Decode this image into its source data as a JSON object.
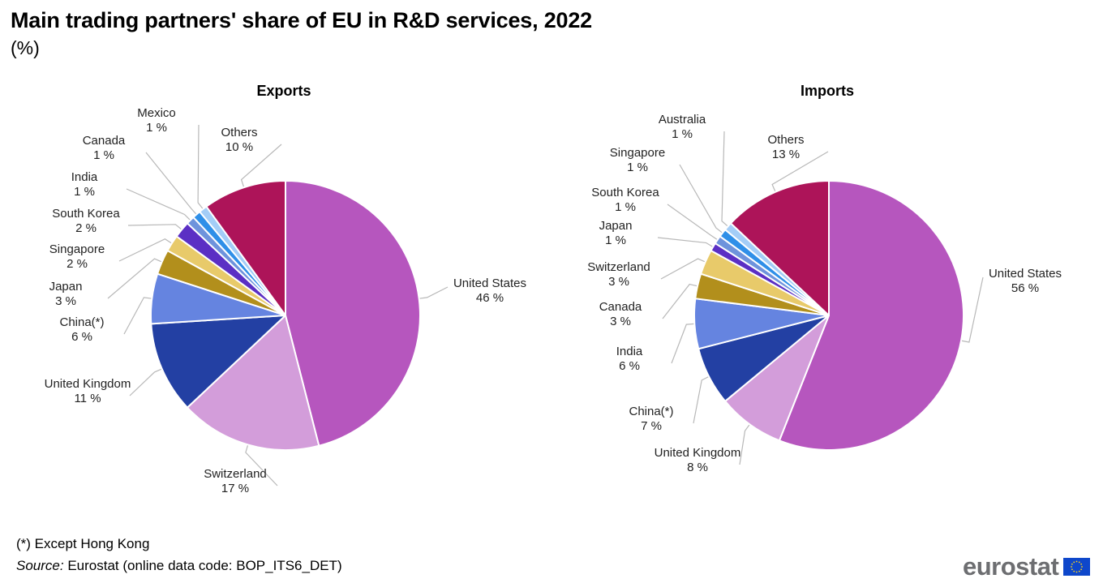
{
  "title": "Main trading partners' share of EU in R&D services, 2022",
  "subtitle": "(%)",
  "footnote": "(*) Except Hong  Kong",
  "source": {
    "label": "Source:",
    "text": " Eurostat (online data code: BOP_ITS6_DET)"
  },
  "logo": {
    "text": "eurostat",
    "flag_color": "#0e47cb",
    "star_color": "#ffd617"
  },
  "chart_data": [
    {
      "type": "pie",
      "title": "Exports",
      "unit": "%",
      "slices": [
        {
          "label": "United States",
          "value": 46,
          "value_label": "46 %",
          "color": "#b656be"
        },
        {
          "label": "Switzerland",
          "value": 17,
          "value_label": "17 %",
          "color": "#d39dda"
        },
        {
          "label": "United Kingdom",
          "value": 11,
          "value_label": "11 %",
          "color": "#2340a3"
        },
        {
          "label": "China(*)",
          "value": 6,
          "value_label": "6 %",
          "color": "#6584e0"
        },
        {
          "label": "Japan",
          "value": 3,
          "value_label": "3 %",
          "color": "#b28f1c"
        },
        {
          "label": "Singapore",
          "value": 2,
          "value_label": "2 %",
          "color": "#e8ca6a"
        },
        {
          "label": "South Korea",
          "value": 2,
          "value_label": "2 %",
          "color": "#5b2fc4"
        },
        {
          "label": "India",
          "value": 1,
          "value_label": "1 %",
          "color": "#6e93dc"
        },
        {
          "label": "Canada",
          "value": 1,
          "value_label": "1 %",
          "color": "#2f8fe8"
        },
        {
          "label": "Mexico",
          "value": 1,
          "value_label": "1 %",
          "color": "#a3cdf7"
        },
        {
          "label": "Others",
          "value": 10,
          "value_label": "10 %",
          "color": "#ad1459"
        }
      ]
    },
    {
      "type": "pie",
      "title": "Imports",
      "unit": "%",
      "slices": [
        {
          "label": "United States",
          "value": 56,
          "value_label": "56 %",
          "color": "#b656be"
        },
        {
          "label": "United Kingdom",
          "value": 8,
          "value_label": "8 %",
          "color": "#d39dda"
        },
        {
          "label": "China(*)",
          "value": 7,
          "value_label": "7 %",
          "color": "#2340a3"
        },
        {
          "label": "India",
          "value": 6,
          "value_label": "6 %",
          "color": "#6584e0"
        },
        {
          "label": "Canada",
          "value": 3,
          "value_label": "3 %",
          "color": "#b28f1c"
        },
        {
          "label": "Switzerland",
          "value": 3,
          "value_label": "3 %",
          "color": "#e8ca6a"
        },
        {
          "label": "Japan",
          "value": 1,
          "value_label": "1 %",
          "color": "#5b2fc4"
        },
        {
          "label": "South Korea",
          "value": 1,
          "value_label": "1 %",
          "color": "#6e93dc"
        },
        {
          "label": "Singapore",
          "value": 1,
          "value_label": "1 %",
          "color": "#2f8fe8"
        },
        {
          "label": "Australia",
          "value": 1,
          "value_label": "1 %",
          "color": "#a3cdf7"
        },
        {
          "label": "Others",
          "value": 13,
          "value_label": "13 %",
          "color": "#ad1459"
        }
      ]
    }
  ]
}
